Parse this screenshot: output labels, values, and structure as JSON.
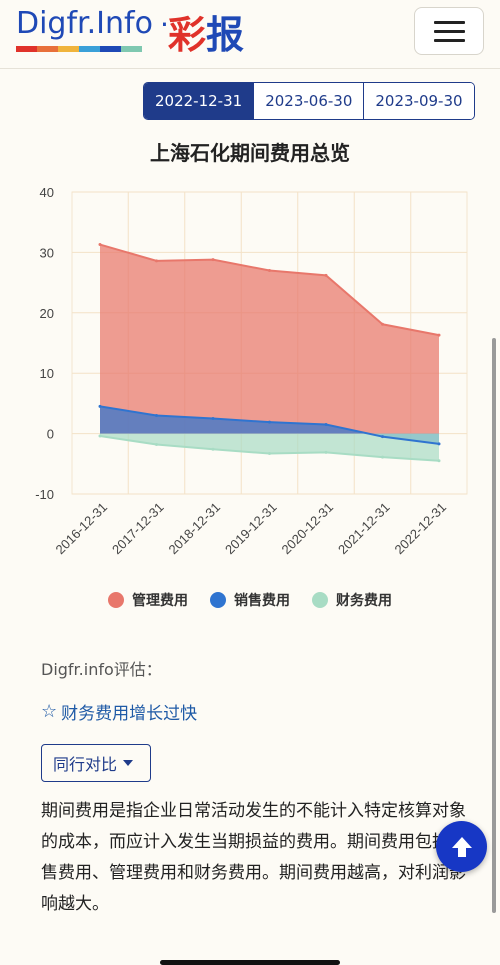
{
  "header": {
    "logo_text": "Digfr.Info",
    "logo_dot": "·",
    "logo_cn_1": "彩",
    "logo_cn_2": "报",
    "logo_bar_colors": [
      "#e0322a",
      "#e8703a",
      "#f0b43c",
      "#3aa0d8",
      "#1f49b6",
      "#7fc8b0"
    ],
    "menu_icon": "hamburger-icon"
  },
  "tabs": [
    {
      "label": "2022-12-31",
      "active": true
    },
    {
      "label": "2023-06-30",
      "active": false
    },
    {
      "label": "2023-09-30",
      "active": false
    }
  ],
  "chart_data": {
    "type": "area",
    "title": "上海石化期间费用总览",
    "categories": [
      "2016-12-31",
      "2017-12-31",
      "2018-12-31",
      "2019-12-31",
      "2020-12-31",
      "2021-12-31",
      "2022-12-31"
    ],
    "ylim": [
      -10,
      40
    ],
    "yticks": [
      -10,
      0,
      10,
      20,
      30,
      40
    ],
    "grid": true,
    "legend_position": "bottom",
    "series": [
      {
        "name": "管理费用",
        "color": "#e8776b",
        "values": [
          31.3,
          28.6,
          28.8,
          27.0,
          26.2,
          18.1,
          16.3
        ]
      },
      {
        "name": "销售费用",
        "color": "#2f74d0",
        "values": [
          4.5,
          3.0,
          2.5,
          1.9,
          1.5,
          -0.5,
          -1.7
        ]
      },
      {
        "name": "财务费用",
        "color": "#a8dcc4",
        "values": [
          -0.4,
          -1.8,
          -2.6,
          -3.3,
          -3.1,
          -3.9,
          -4.5
        ]
      }
    ]
  },
  "evaluation": {
    "label": "Digfr.info评估：",
    "items": [
      "财务费用增长过快"
    ]
  },
  "compare_button": "同行对比",
  "description": "期间费用是指企业日常活动发生的不能计入特定核算对象的成本，而应计入发生当期损益的费用。期间费用包括销售费用、管理费用和财务费用。期间费用越高，对利润影响越大。"
}
